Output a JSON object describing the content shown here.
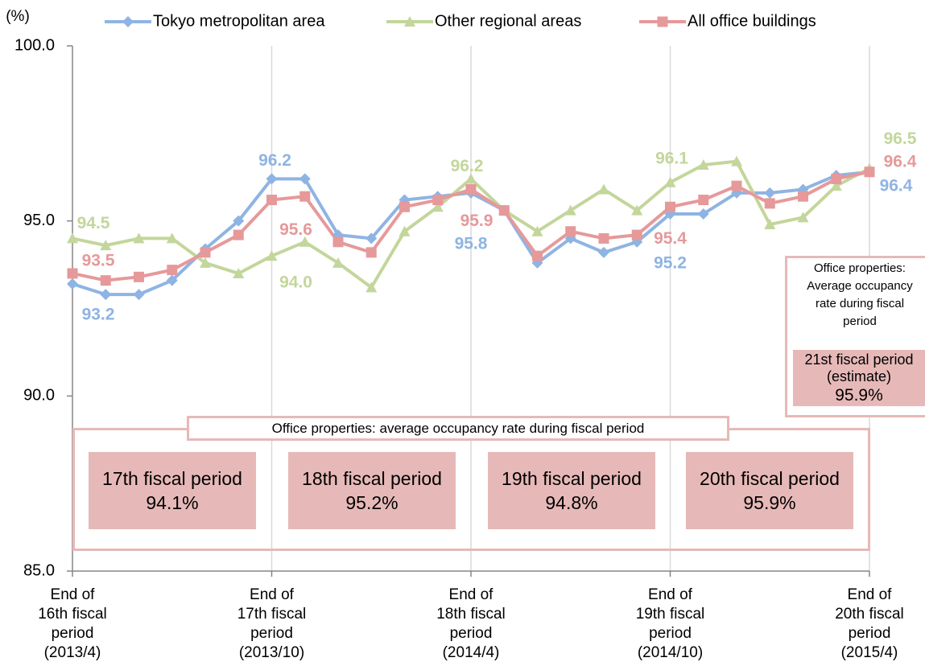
{
  "chart_data": {
    "type": "line",
    "y_label": "(%)",
    "categories": [
      "End of\n16th fiscal\nperiod\n(2013/4)",
      null,
      null,
      null,
      null,
      null,
      "End of\n17th fiscal\nperiod\n(2013/10)",
      null,
      null,
      null,
      null,
      null,
      "End of\n18th fiscal\nperiod\n(2014/4)",
      null,
      null,
      null,
      null,
      null,
      "End of\n19th fiscal\nperiod\n(2014/10)",
      null,
      null,
      null,
      null,
      null,
      "End of\n20th fiscal\nperiod\n(2015/4)"
    ],
    "ylim": [
      85,
      100
    ],
    "yticks": [
      {
        "value": 85,
        "label": "85.0"
      },
      {
        "value": 90,
        "label": "90.0"
      },
      {
        "value": 95,
        "label": "95.0"
      },
      {
        "value": 100,
        "label": "100.0"
      }
    ],
    "legend": "top",
    "series": [
      {
        "name": "Tokyo metropolitan area",
        "color": "#8eb4e3",
        "marker": "diamond",
        "values": [
          93.2,
          92.9,
          92.9,
          93.3,
          94.2,
          95.0,
          96.2,
          96.2,
          94.6,
          94.5,
          95.6,
          95.7,
          95.8,
          95.3,
          93.8,
          94.5,
          94.1,
          94.4,
          95.2,
          95.2,
          95.8,
          95.8,
          95.9,
          96.3,
          96.4
        ],
        "value_labels": [
          "93.2",
          null,
          null,
          null,
          null,
          null,
          "96.2",
          null,
          null,
          null,
          null,
          null,
          "95.8",
          null,
          null,
          null,
          null,
          null,
          "95.2",
          null,
          null,
          null,
          null,
          null,
          "96.4"
        ]
      },
      {
        "name": "Other regional areas",
        "color": "#c3d69b",
        "marker": "triangle",
        "values": [
          94.5,
          94.3,
          94.5,
          94.5,
          93.8,
          93.5,
          94.0,
          94.4,
          93.8,
          93.1,
          94.7,
          95.4,
          96.2,
          95.3,
          94.7,
          95.3,
          95.9,
          95.3,
          96.1,
          96.6,
          96.7,
          94.9,
          95.1,
          96.0,
          96.5
        ],
        "value_labels": [
          "94.5",
          null,
          null,
          null,
          null,
          null,
          "94.0",
          null,
          null,
          null,
          null,
          null,
          "96.2",
          null,
          null,
          null,
          null,
          null,
          "96.1",
          null,
          null,
          null,
          null,
          null,
          "96.5"
        ]
      },
      {
        "name": "All office buildings",
        "color": "#e6999a",
        "marker": "square",
        "values": [
          93.5,
          93.3,
          93.4,
          93.6,
          94.1,
          94.6,
          95.6,
          95.7,
          94.4,
          94.1,
          95.4,
          95.6,
          95.9,
          95.3,
          94.0,
          94.7,
          94.5,
          94.6,
          95.4,
          95.6,
          96.0,
          95.5,
          95.7,
          96.2,
          96.4
        ],
        "value_labels": [
          "93.5",
          null,
          null,
          null,
          null,
          null,
          "95.6",
          null,
          null,
          null,
          null,
          null,
          "95.9",
          null,
          null,
          null,
          null,
          null,
          "95.4",
          null,
          null,
          null,
          null,
          null,
          "96.4"
        ]
      }
    ],
    "annotations": {
      "period_box": {
        "title": "Office properties: average occupancy rate during fiscal period",
        "items": [
          {
            "period": "17th fiscal period",
            "rate": "94.1%"
          },
          {
            "period": "18th fiscal period",
            "rate": "95.2%"
          },
          {
            "period": "19th fiscal period",
            "rate": "94.8%"
          },
          {
            "period": "20th fiscal period",
            "rate": "95.9%"
          }
        ]
      },
      "estimate_box": {
        "title": "Office properties: Average occupancy rate during fiscal period",
        "period": "21st fiscal period (estimate)",
        "rate": "95.9%"
      }
    }
  }
}
